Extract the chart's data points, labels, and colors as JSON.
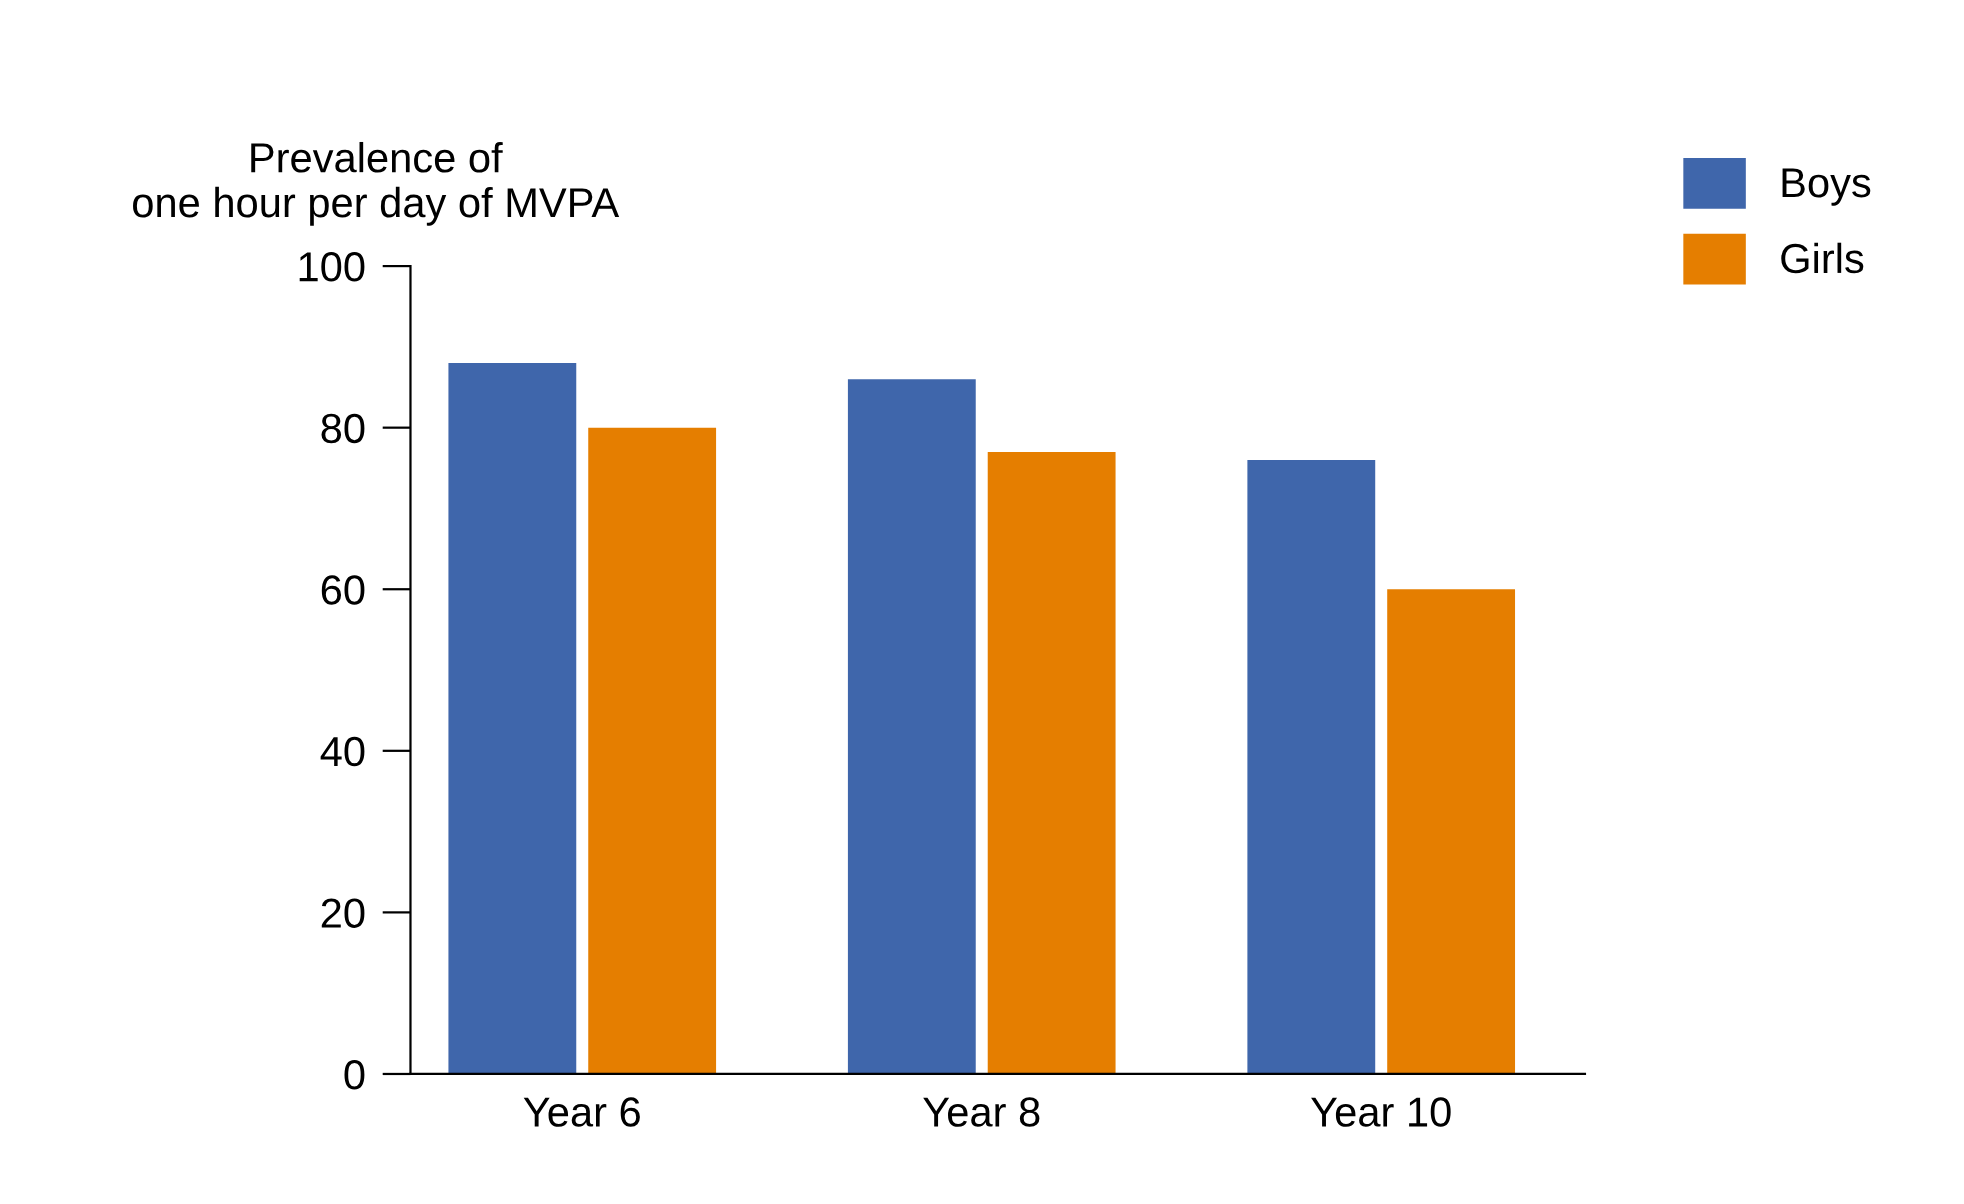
{
  "chart_data": {
    "type": "bar",
    "ylabel": "Prevalence of\none hour per day of MVPA",
    "categories": [
      "Year 6",
      "Year 8",
      "Year 10"
    ],
    "series": [
      {
        "name": "Boys",
        "color": "#3f66ab",
        "values": [
          88,
          86,
          76
        ]
      },
      {
        "name": "Girls",
        "color": "#e57e00",
        "values": [
          80,
          77,
          60
        ]
      }
    ],
    "ylim": [
      0,
      100
    ],
    "yticks": [
      0,
      20,
      40,
      60,
      80,
      100
    ],
    "grid": false,
    "legend": "top right"
  }
}
